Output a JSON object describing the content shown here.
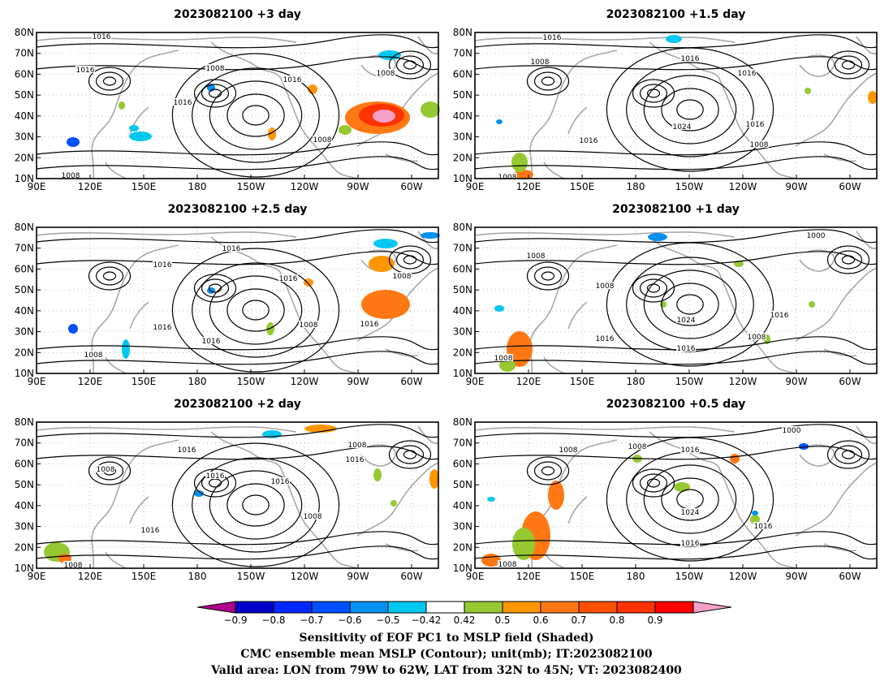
{
  "figure": {
    "panels": [
      {
        "id": "p1",
        "title": "2023082100  +3  day",
        "contour_labels": [
          "1016",
          "1016",
          "1016",
          "1008",
          "1016",
          "1008",
          "1008",
          "1008"
        ]
      },
      {
        "id": "p2",
        "title": "2023082100  +1.5  day",
        "contour_labels": [
          "1016",
          "1008",
          "1016",
          "1016",
          "1024",
          "1016",
          "1016",
          "1008",
          "1008"
        ]
      },
      {
        "id": "p3",
        "title": "2023082100  +2.5  day",
        "contour_labels": [
          "1016",
          "1016",
          "1016",
          "1016",
          "1016",
          "1008",
          "1008",
          "1016",
          "1008"
        ]
      },
      {
        "id": "p4",
        "title": "2023082100  +1  day",
        "contour_labels": [
          "1008",
          "1008",
          "1000",
          "1024",
          "1016",
          "1016",
          "1016",
          "1008",
          "1008"
        ]
      },
      {
        "id": "p5",
        "title": "2023082100  +2  day",
        "contour_labels": [
          "1016",
          "1008",
          "1016",
          "1016",
          "1008",
          "1016",
          "1016",
          "1008",
          "1008"
        ]
      },
      {
        "id": "p6",
        "title": "2023082100  +0.5  day",
        "contour_labels": [
          "1008",
          "1008",
          "1016",
          "1000",
          "1024",
          "1016",
          "1016",
          "1008"
        ]
      }
    ],
    "lat_ticks": [
      "80N",
      "70N",
      "60N",
      "50N",
      "40N",
      "30N",
      "20N",
      "10N"
    ],
    "lon_ticks": [
      "90E",
      "120E",
      "150E",
      "180",
      "150W",
      "120W",
      "90W",
      "60W"
    ],
    "colorbar": {
      "colors": [
        "#b0008c",
        "#0000c8",
        "#0028ff",
        "#0050ff",
        "#0090f0",
        "#00c8f0",
        "#ffffff",
        "#96c832",
        "#ff9600",
        "#ff7814",
        "#ff5000",
        "#ff3200",
        "#ff0000",
        "#f5a0c8"
      ],
      "labels": [
        "−0.9",
        "−0.8",
        "−0.7",
        "−0.6",
        "−0.5",
        "−0.42",
        "0.42",
        "0.5",
        "0.6",
        "0.7",
        "0.8",
        "0.9"
      ]
    },
    "caption": [
      "Sensitivity of EOF PC1 to MSLP field (Shaded)",
      "CMC ensemble mean MSLP (Contour); unit(mb); IT:2023082100",
      "Valid area: LON from 79W to 62W, LAT from 32N to 45N; VT: 2023082400"
    ]
  }
}
